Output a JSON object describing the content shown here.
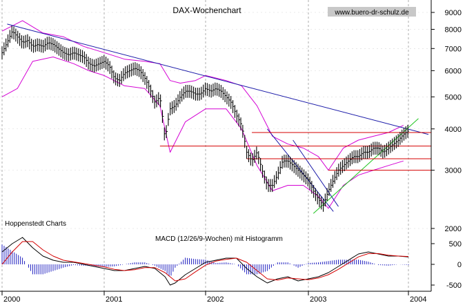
{
  "chart_data": [
    {
      "type": "line",
      "subtype": "candlestick-weekly",
      "title": "DAX-Wochenchart",
      "watermark": "www.buero-dr-schulz.de",
      "credit": "Hoppenstedt Charts",
      "xlabel": "",
      "ylabel": "",
      "y_scale": "log",
      "ylim": [
        1900,
        9800
      ],
      "xlim": [
        2000.0,
        2004.15
      ],
      "grid": true,
      "x_tick_labels": [
        "2000",
        "2001",
        "2002",
        "2003",
        "2004"
      ],
      "x_ticks": [
        2000,
        2001,
        2002,
        2003,
        2004
      ],
      "y_ticks": [
        2000,
        3000,
        4000,
        5000,
        6000,
        7000,
        8000,
        9000
      ],
      "y_tick_labels": [
        "2000",
        "3000",
        "4000",
        "5000",
        "6000",
        "7000",
        "8000",
        "9000"
      ],
      "colors": {
        "price": "#000000",
        "bollinger": "#d400d4",
        "downtrend": "#1a1aa8",
        "horizontals": "#d40000",
        "channel": "#1a1aa8",
        "uptrend": "#1ec41e",
        "grid": "#9a9a9a"
      },
      "series": [
        {
          "key": "price",
          "x": [
            2000.0,
            2000.05,
            2000.1,
            2000.15,
            2000.2,
            2000.25,
            2000.3,
            2000.35,
            2000.4,
            2000.45,
            2000.5,
            2000.55,
            2000.6,
            2000.65,
            2000.7,
            2000.75,
            2000.8,
            2000.85,
            2000.9,
            2000.95,
            2001.0,
            2001.05,
            2001.1,
            2001.15,
            2001.2,
            2001.25,
            2001.3,
            2001.35,
            2001.4,
            2001.45,
            2001.5,
            2001.55,
            2001.6,
            2001.65,
            2001.7,
            2001.75,
            2001.8,
            2001.85,
            2001.9,
            2001.95,
            2002.0,
            2002.05,
            2002.1,
            2002.15,
            2002.2,
            2002.25,
            2002.3,
            2002.35,
            2002.4,
            2002.45,
            2002.5,
            2002.55,
            2002.6,
            2002.65,
            2002.7,
            2002.75,
            2002.8,
            2002.85,
            2002.9,
            2002.95,
            2003.0,
            2003.05,
            2003.1,
            2003.15,
            2003.2,
            2003.25,
            2003.3,
            2003.35,
            2003.4,
            2003.45,
            2003.5,
            2003.55,
            2003.6,
            2003.65,
            2003.7,
            2003.75,
            2003.8,
            2003.85,
            2003.9,
            2003.95,
            2004.0
          ],
          "values": [
            6800,
            7300,
            7900,
            7600,
            7300,
            7400,
            7100,
            7200,
            7100,
            7300,
            7200,
            7000,
            6800,
            6700,
            6800,
            6700,
            6600,
            6300,
            6200,
            6300,
            6400,
            6200,
            5700,
            5600,
            5900,
            6000,
            6100,
            6000,
            5700,
            5300,
            4800,
            5000,
            3700,
            4600,
            4700,
            5000,
            5200,
            5200,
            5100,
            5100,
            5300,
            5200,
            5300,
            5200,
            5000,
            4800,
            4400,
            4100,
            3400,
            3200,
            3400,
            3000,
            2700,
            2700,
            2900,
            3200,
            3200,
            3100,
            3000,
            2900,
            2800,
            2600,
            2450,
            2350,
            2600,
            2800,
            3000,
            3100,
            3200,
            3300,
            3300,
            3400,
            3400,
            3500,
            3500,
            3400,
            3500,
            3600,
            3700,
            3850,
            3950
          ]
        },
        {
          "key": "upper_band",
          "x": [
            2000.0,
            2000.2,
            2000.4,
            2000.6,
            2000.8,
            2001.0,
            2001.2,
            2001.4,
            2001.55,
            2001.65,
            2001.75,
            2001.9,
            2002.0,
            2002.2,
            2002.35,
            2002.5,
            2002.65,
            2002.8,
            2002.95,
            2003.1,
            2003.2,
            2003.35,
            2003.5,
            2003.65,
            2003.8,
            2003.95
          ],
          "values": [
            7900,
            8500,
            7800,
            7600,
            7100,
            6800,
            6500,
            6400,
            6300,
            5600,
            5500,
            5600,
            5800,
            5600,
            5400,
            4700,
            3800,
            3600,
            3500,
            3300,
            3000,
            3500,
            3700,
            3800,
            3900,
            4100
          ]
        },
        {
          "key": "lower_band",
          "x": [
            2000.0,
            2000.15,
            2000.3,
            2000.5,
            2000.7,
            2000.85,
            2001.0,
            2001.2,
            2001.4,
            2001.55,
            2001.65,
            2001.8,
            2002.0,
            2002.2,
            2002.35,
            2002.5,
            2002.65,
            2002.8,
            2002.95,
            2003.1,
            2003.2,
            2003.35,
            2003.5,
            2003.65,
            2003.8,
            2003.95
          ],
          "values": [
            5000,
            5300,
            6400,
            6600,
            6300,
            6000,
            5800,
            5400,
            5300,
            4700,
            3400,
            4200,
            4600,
            4600,
            4000,
            3100,
            2600,
            2700,
            2700,
            2500,
            2300,
            2700,
            2900,
            3000,
            3100,
            3200
          ]
        },
        {
          "key": "macd",
          "x": [
            2000.0,
            2000.1,
            2000.2,
            2000.3,
            2000.4,
            2000.5,
            2000.6,
            2000.7,
            2000.8,
            2000.9,
            2001.0,
            2001.1,
            2001.2,
            2001.3,
            2001.4,
            2001.5,
            2001.6,
            2001.65,
            2001.7,
            2001.8,
            2001.9,
            2002.0,
            2002.1,
            2002.2,
            2002.3,
            2002.4,
            2002.5,
            2002.6,
            2002.7,
            2002.8,
            2002.9,
            2003.0,
            2003.1,
            2003.2,
            2003.3,
            2003.4,
            2003.5,
            2003.6,
            2003.7,
            2003.8,
            2003.9,
            2004.0
          ],
          "values": [
            300,
            500,
            650,
            400,
            200,
            100,
            50,
            50,
            0,
            -50,
            -100,
            -150,
            -150,
            -100,
            -50,
            -100,
            -300,
            -500,
            -450,
            -250,
            -100,
            50,
            100,
            150,
            150,
            -100,
            -300,
            -450,
            -350,
            -300,
            -400,
            -350,
            -300,
            -200,
            -50,
            100,
            250,
            300,
            250,
            200,
            200,
            180
          ]
        },
        {
          "key": "signal",
          "x": [
            2000.0,
            2000.1,
            2000.2,
            2000.3,
            2000.4,
            2000.5,
            2000.6,
            2000.7,
            2000.8,
            2000.9,
            2001.0,
            2001.1,
            2001.2,
            2001.3,
            2001.4,
            2001.5,
            2001.6,
            2001.7,
            2001.8,
            2001.9,
            2002.0,
            2002.1,
            2002.2,
            2002.3,
            2002.4,
            2002.5,
            2002.6,
            2002.7,
            2002.8,
            2002.9,
            2003.0,
            2003.1,
            2003.2,
            2003.3,
            2003.4,
            2003.5,
            2003.6,
            2003.7,
            2003.8,
            2003.9,
            2004.0
          ],
          "values": [
            0,
            300,
            550,
            550,
            350,
            200,
            100,
            60,
            20,
            -20,
            -60,
            -120,
            -150,
            -130,
            -80,
            -80,
            -200,
            -400,
            -350,
            -180,
            -20,
            80,
            120,
            150,
            50,
            -150,
            -350,
            -380,
            -330,
            -350,
            -370,
            -330,
            -250,
            -120,
            30,
            180,
            260,
            260,
            220,
            200,
            190
          ]
        }
      ],
      "trendlines": [
        {
          "name": "downtrend",
          "x": [
            2000.05,
            2004.2
          ],
          "values": [
            8300,
            3850
          ]
        },
        {
          "name": "channel-left",
          "x": [
            2002.6,
            2003.25
          ],
          "values": [
            4000,
            2250
          ]
        },
        {
          "name": "channel-right",
          "x": [
            2002.85,
            2003.3
          ],
          "values": [
            3700,
            2330
          ]
        },
        {
          "name": "uptrend",
          "x": [
            2003.05,
            2004.1
          ],
          "values": [
            2220,
            4300
          ]
        }
      ],
      "horizontal_lines": [
        {
          "value": 3900,
          "x_from": 2002.45
        },
        {
          "value": 3550,
          "x_from": 2001.55
        },
        {
          "value": 3250,
          "x_from": 2002.4
        },
        {
          "value": 3000,
          "x_from": 2003.2
        }
      ]
    },
    {
      "type": "line",
      "subtype": "macd-histogram",
      "title": "MACD (12/26/9-Wochen) mit Histogramm",
      "ylim": [
        -600,
        800
      ],
      "y_ticks": [
        -500,
        0,
        500
      ],
      "y_tick_labels": [
        "-500",
        "0",
        "500"
      ],
      "series_keys": [
        "macd",
        "signal"
      ],
      "colors": {
        "macd": "#000000",
        "signal": "#d40000",
        "histogram": "#2020c0"
      }
    }
  ]
}
